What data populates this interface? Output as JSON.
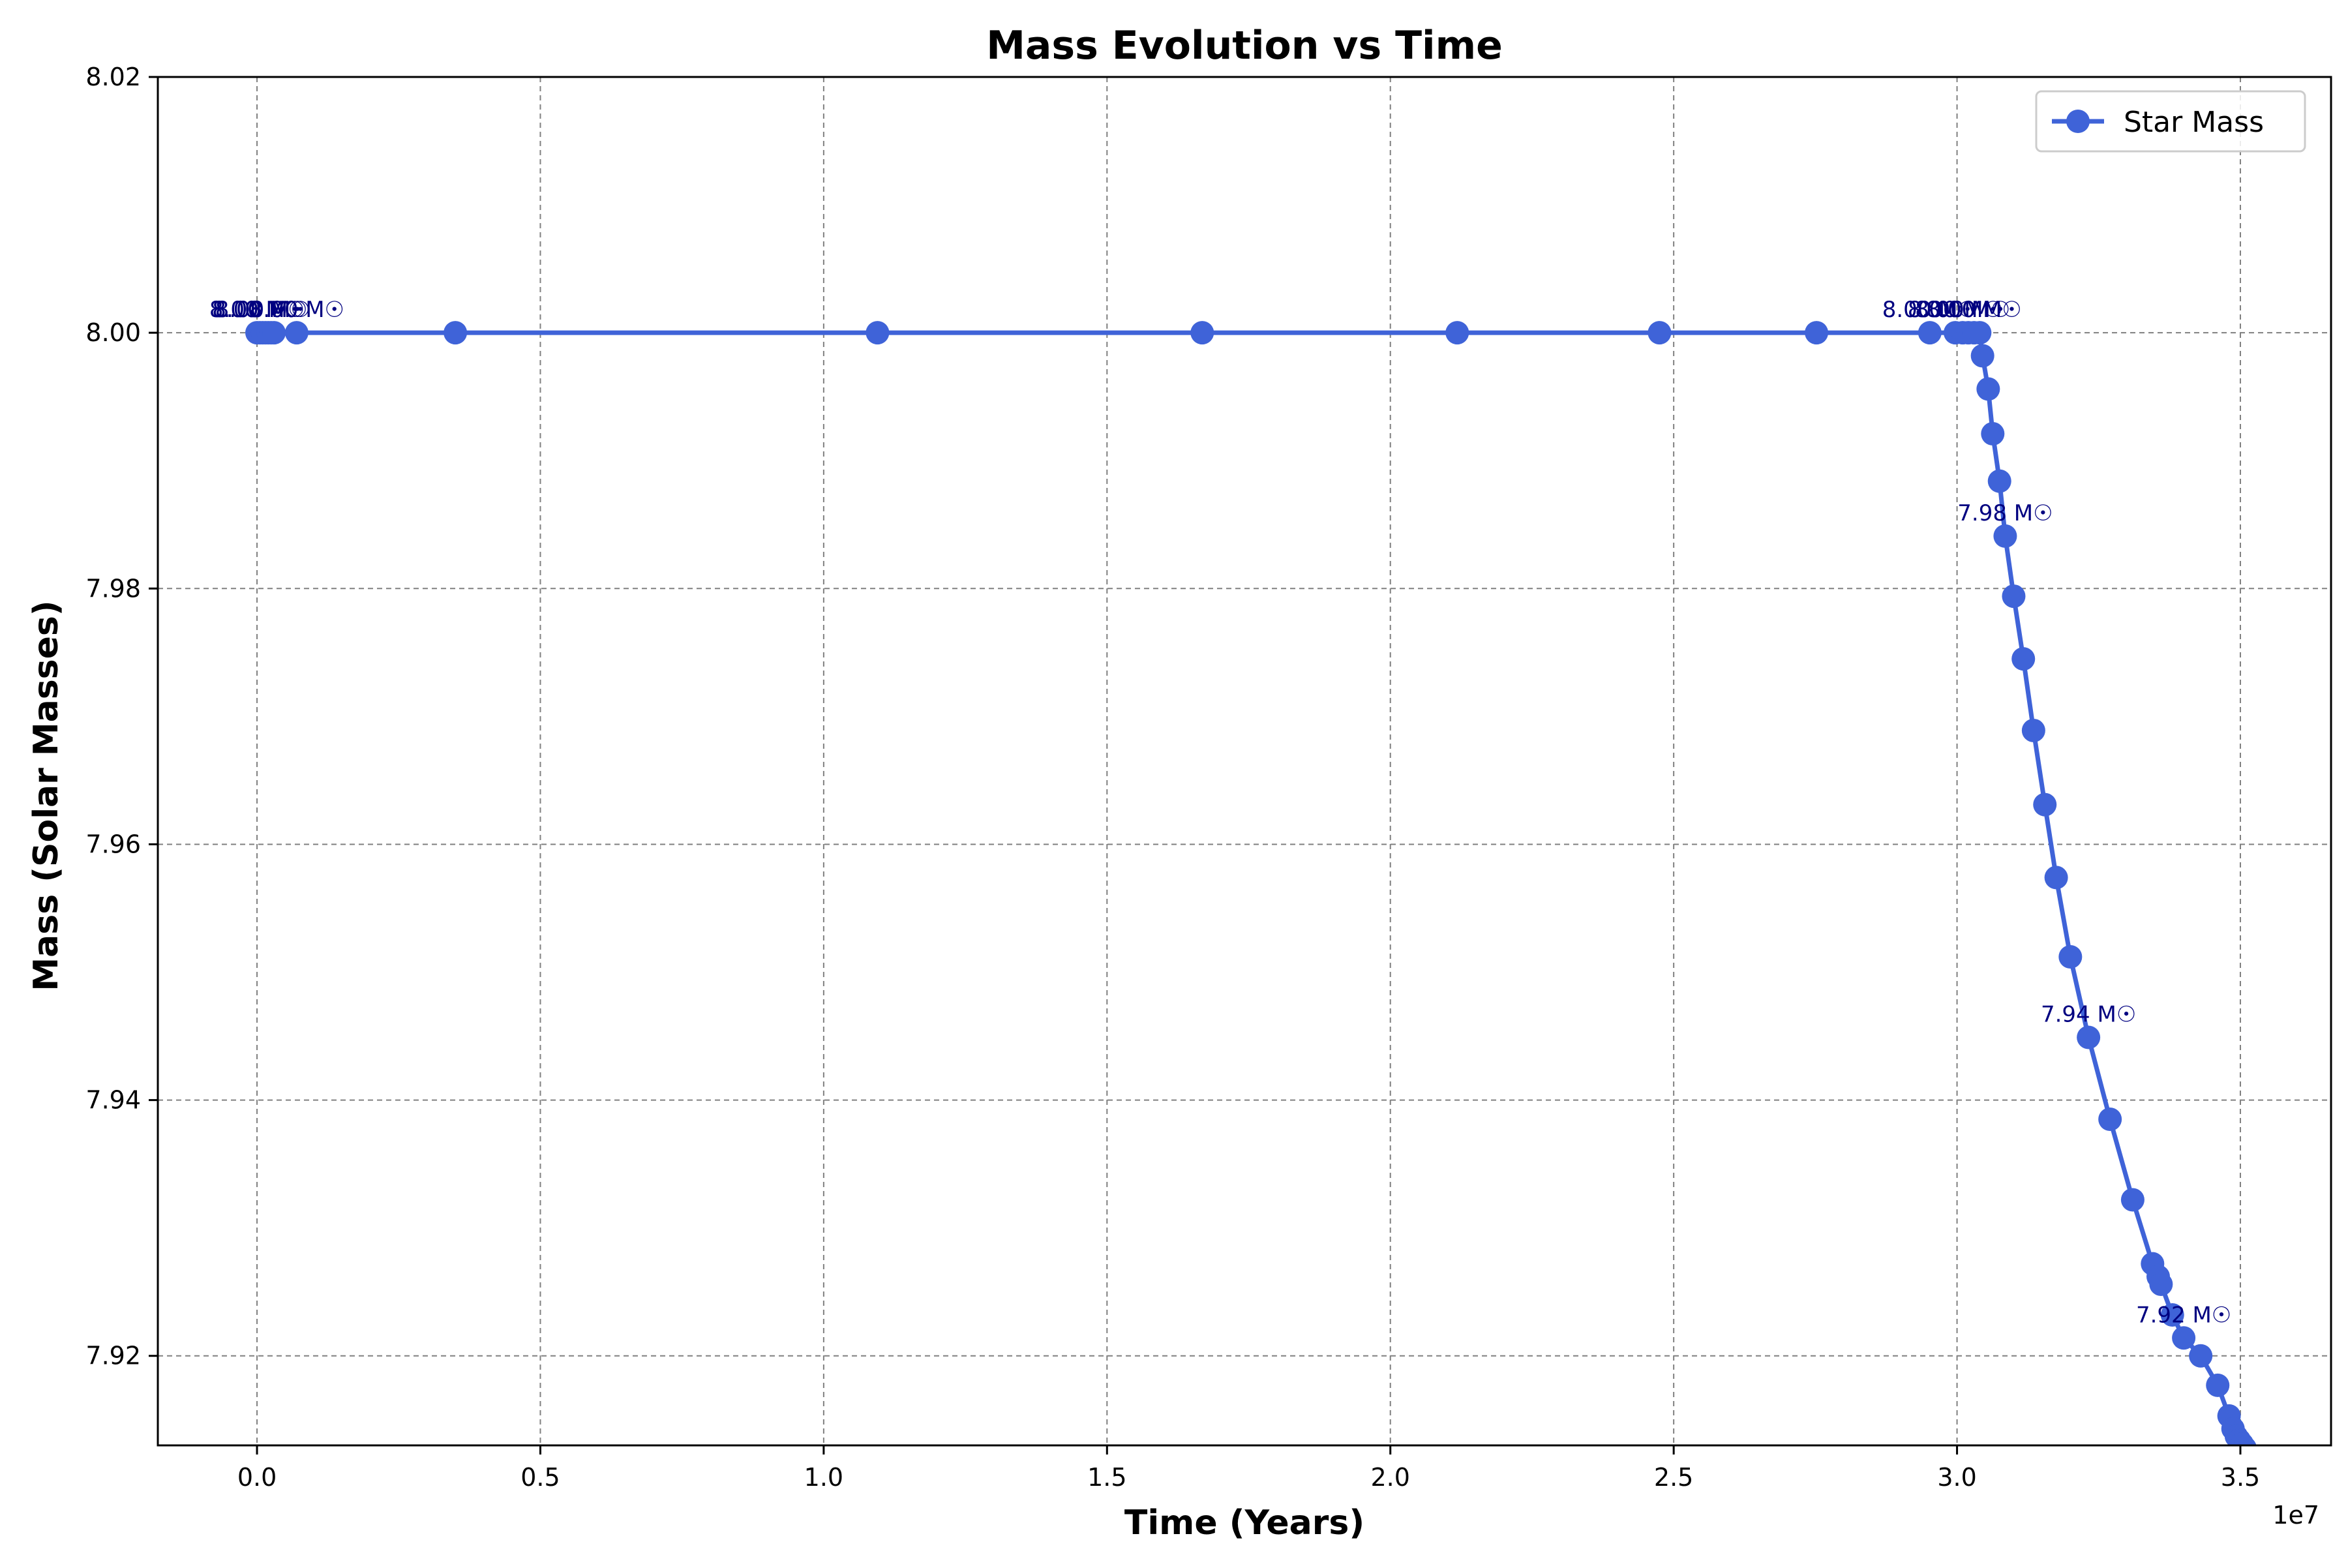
{
  "chart_data": {
    "type": "line",
    "title": "Mass Evolution vs Time",
    "xlabel": "Time (Years)",
    "ylabel": "Mass (Solar Masses)",
    "x_offset_label": "1e7",
    "xlim": [
      -1750000,
      36600000
    ],
    "ylim": [
      7.913,
      8.02
    ],
    "x_ticks": [
      0,
      5000000,
      10000000,
      15000000,
      20000000,
      25000000,
      30000000,
      35000000
    ],
    "x_tick_labels": [
      "0.0",
      "0.5",
      "1.0",
      "1.5",
      "2.0",
      "2.5",
      "3.0",
      "3.5"
    ],
    "y_ticks": [
      7.92,
      7.94,
      7.96,
      7.98,
      8.0,
      8.02
    ],
    "y_tick_labels": [
      "7.92",
      "7.94",
      "7.96",
      "7.98",
      "8.00",
      "8.02"
    ],
    "grid": true,
    "legend_position": "top-right",
    "series": [
      {
        "name": "Star Mass",
        "color": "#3f63d8",
        "marker": "circle",
        "x": [
          0,
          50000,
          100000,
          150000,
          200000,
          250000,
          300000,
          700000,
          3500000,
          10950000,
          16680000,
          21180000,
          24750000,
          27520000,
          29520000,
          29970000,
          30100000,
          30200000,
          30300000,
          30400000,
          30450000,
          30550000,
          30630000,
          30750000,
          30850000,
          31000000,
          31170000,
          31350000,
          31550000,
          31750000,
          32000000,
          32320000,
          32700000,
          33100000,
          33450000,
          33550000,
          33600000,
          33800000,
          34000000,
          34300000,
          34600000,
          34800000,
          34870000,
          34930000,
          34980000,
          35030000,
          35080000
        ],
        "y": [
          8.0,
          8.0,
          8.0,
          8.0,
          8.0,
          8.0,
          8.0,
          8.0,
          8.0,
          8.0,
          8.0,
          8.0,
          8.0,
          8.0,
          8.0,
          8.0,
          8.0,
          8.0,
          8.0,
          8.0,
          7.9982,
          7.9956,
          7.9921,
          7.9884,
          7.9841,
          7.9794,
          7.9745,
          7.9689,
          7.9631,
          7.9574,
          7.9512,
          7.9449,
          7.9385,
          7.9322,
          7.9272,
          7.9262,
          7.9256,
          7.9232,
          7.9214,
          7.92,
          7.9177,
          7.9153,
          7.9143,
          7.9137,
          7.9134,
          7.9131,
          7.9128
        ]
      }
    ],
    "annotations": [
      {
        "x": 0,
        "y": 8.0,
        "text": "8.00 M☉"
      },
      {
        "x": 50000,
        "y": 8.0,
        "text": "8.00 M☉"
      },
      {
        "x": 100000,
        "y": 8.0,
        "text": "8.00 M☉"
      },
      {
        "x": 700000,
        "y": 8.0,
        "text": "8.00 M☉"
      },
      {
        "x": 29520000,
        "y": 8.0,
        "text": "8.00 M☉"
      },
      {
        "x": 29970000,
        "y": 8.0,
        "text": "8.00 M☉"
      },
      {
        "x": 30100000,
        "y": 8.0,
        "text": "8.00 M☉"
      },
      {
        "x": 30300000,
        "y": 8.0,
        "text": "8.00 M☉"
      },
      {
        "x": 30850000,
        "y": 7.9841,
        "text": "7.98 M☉"
      },
      {
        "x": 32320000,
        "y": 7.9449,
        "text": "7.94 M☉"
      },
      {
        "x": 34000000,
        "y": 7.9214,
        "text": "7.92 M☉"
      }
    ]
  }
}
